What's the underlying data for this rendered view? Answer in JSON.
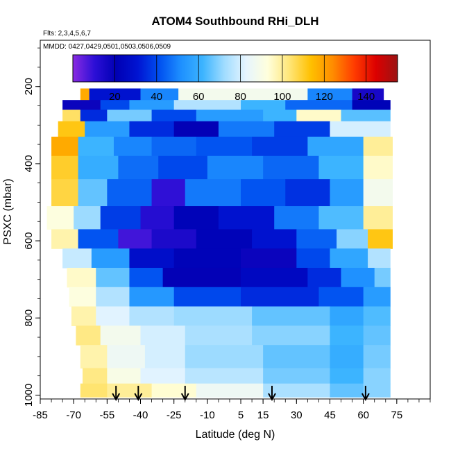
{
  "chart_data": {
    "type": "heatmap",
    "title": "ATOM4 Southbound RHi_DLH",
    "subtitle_flights": "Flts: 2,3,4,5,6,7",
    "subtitle_dates": "MMDD: 0427,0429,0501,0503,0506,0509",
    "xlabel": "Latitude (deg N)",
    "ylabel": "PSXC (mbar)",
    "xlim": [
      -85,
      90
    ],
    "ylim": [
      1010,
      80
    ],
    "x_ticks": [
      -85,
      -70,
      -55,
      -40,
      -25,
      -10,
      5,
      15,
      30,
      45,
      60,
      75
    ],
    "x_tick_labels": [
      "-85",
      "-70",
      "-55",
      "-40",
      "-25",
      "-10",
      "5",
      "15",
      "30",
      "45",
      "60",
      "75"
    ],
    "y_ticks": [
      200,
      400,
      600,
      800,
      1000
    ],
    "y_tick_labels": [
      "200",
      "400",
      "600",
      "800",
      "1000"
    ],
    "colorbar": {
      "range": [
        0,
        155
      ],
      "ticks": [
        20,
        40,
        60,
        80,
        100,
        120,
        140
      ],
      "tick_labels": [
        "20",
        "40",
        "60",
        "80",
        "100",
        "120",
        "140"
      ],
      "colors": [
        "#8a2be2",
        "#2c0fd6",
        "#0000b4",
        "#0014d2",
        "#0050f0",
        "#1e90ff",
        "#3cb4ff",
        "#a0dcff",
        "#e6f5ff",
        "#ffffdc",
        "#ffe678",
        "#ffc000",
        "#ff8c00",
        "#ff3c00",
        "#dc0000",
        "#9b1414"
      ]
    },
    "arrow_latitudes": [
      -51,
      -41,
      -20,
      19,
      61
    ],
    "profile_rows": [
      {
        "p0": 205,
        "p1": 235,
        "segments": [
          [
            -67,
            -63,
            118
          ],
          [
            -63,
            -40,
            30
          ],
          [
            -40,
            -23,
            50
          ],
          [
            -23,
            35,
            88
          ],
          [
            35,
            55,
            50
          ],
          [
            55,
            69,
            15
          ]
        ]
      },
      {
        "p0": 235,
        "p1": 260,
        "segments": [
          [
            -75,
            -58,
            18
          ],
          [
            -58,
            -45,
            40
          ],
          [
            -45,
            -25,
            55
          ],
          [
            -25,
            5,
            75
          ],
          [
            5,
            25,
            62
          ],
          [
            25,
            55,
            45
          ],
          [
            55,
            72,
            22
          ]
        ]
      },
      {
        "p0": 260,
        "p1": 290,
        "segments": [
          [
            -75,
            -67,
            105
          ],
          [
            -67,
            -55,
            35
          ],
          [
            -55,
            -35,
            68
          ],
          [
            -35,
            -15,
            40
          ],
          [
            -15,
            15,
            55
          ],
          [
            15,
            30,
            62
          ],
          [
            30,
            50,
            95
          ],
          [
            50,
            72,
            65
          ]
        ]
      },
      {
        "p0": 290,
        "p1": 330,
        "segments": [
          [
            -77,
            -65,
            112
          ],
          [
            -65,
            -45,
            55
          ],
          [
            -45,
            -25,
            35
          ],
          [
            -25,
            -5,
            20
          ],
          [
            -5,
            20,
            48
          ],
          [
            20,
            45,
            38
          ],
          [
            45,
            72,
            80
          ]
        ]
      },
      {
        "p0": 330,
        "p1": 380,
        "segments": [
          [
            -80,
            -68,
            118
          ],
          [
            -68,
            -52,
            62
          ],
          [
            -52,
            -35,
            50
          ],
          [
            -35,
            -15,
            45
          ],
          [
            -15,
            10,
            42
          ],
          [
            10,
            35,
            38
          ],
          [
            35,
            60,
            58
          ],
          [
            60,
            73,
            100
          ]
        ]
      },
      {
        "p0": 380,
        "p1": 440,
        "segments": [
          [
            -80,
            -68,
            110
          ],
          [
            -68,
            -50,
            60
          ],
          [
            -50,
            -32,
            46
          ],
          [
            -32,
            -10,
            40
          ],
          [
            -10,
            15,
            50
          ],
          [
            15,
            40,
            45
          ],
          [
            40,
            60,
            62
          ],
          [
            60,
            73,
            95
          ]
        ]
      },
      {
        "p0": 440,
        "p1": 510,
        "segments": [
          [
            -80,
            -68,
            108
          ],
          [
            -68,
            -55,
            66
          ],
          [
            -55,
            -35,
            44
          ],
          [
            -35,
            -20,
            10
          ],
          [
            -20,
            5,
            48
          ],
          [
            5,
            25,
            42
          ],
          [
            25,
            45,
            36
          ],
          [
            45,
            60,
            55
          ],
          [
            60,
            73,
            88
          ]
        ]
      },
      {
        "p0": 510,
        "p1": 570,
        "segments": [
          [
            -82,
            -70,
            92
          ],
          [
            -70,
            -58,
            72
          ],
          [
            -58,
            -40,
            38
          ],
          [
            -40,
            -25,
            12
          ],
          [
            -25,
            -5,
            22
          ],
          [
            -5,
            20,
            30
          ],
          [
            20,
            40,
            48
          ],
          [
            40,
            60,
            64
          ],
          [
            60,
            73,
            100
          ]
        ]
      },
      {
        "p0": 570,
        "p1": 620,
        "segments": [
          [
            -80,
            -68,
            98
          ],
          [
            -68,
            -50,
            42
          ],
          [
            -50,
            -35,
            8
          ],
          [
            -35,
            -15,
            14
          ],
          [
            -15,
            10,
            22
          ],
          [
            10,
            30,
            30
          ],
          [
            30,
            48,
            44
          ],
          [
            48,
            62,
            70
          ],
          [
            62,
            73,
            112
          ]
        ]
      },
      {
        "p0": 620,
        "p1": 670,
        "segments": [
          [
            -75,
            -62,
            78
          ],
          [
            -62,
            -45,
            55
          ],
          [
            -45,
            -25,
            28
          ],
          [
            -25,
            5,
            22
          ],
          [
            5,
            30,
            18
          ],
          [
            30,
            45,
            40
          ],
          [
            45,
            62,
            58
          ],
          [
            62,
            72,
            75
          ]
        ]
      },
      {
        "p0": 670,
        "p1": 720,
        "segments": [
          [
            -73,
            -60,
            95
          ],
          [
            -60,
            -45,
            66
          ],
          [
            -45,
            -30,
            42
          ],
          [
            -30,
            5,
            20
          ],
          [
            5,
            35,
            25
          ],
          [
            35,
            50,
            35
          ],
          [
            50,
            65,
            52
          ],
          [
            65,
            72,
            68
          ]
        ]
      },
      {
        "p0": 720,
        "p1": 770,
        "segments": [
          [
            -72,
            -60,
            92
          ],
          [
            -60,
            -45,
            75
          ],
          [
            -45,
            -25,
            54
          ],
          [
            -25,
            5,
            40
          ],
          [
            5,
            40,
            35
          ],
          [
            40,
            60,
            42
          ],
          [
            60,
            72,
            55
          ]
        ]
      },
      {
        "p0": 770,
        "p1": 820,
        "segments": [
          [
            -71,
            -60,
            98
          ],
          [
            -60,
            -45,
            82
          ],
          [
            -45,
            -25,
            75
          ],
          [
            -25,
            10,
            72
          ],
          [
            10,
            45,
            66
          ],
          [
            45,
            60,
            58
          ],
          [
            60,
            72,
            64
          ]
        ]
      },
      {
        "p0": 820,
        "p1": 870,
        "segments": [
          [
            -69,
            -58,
            102
          ],
          [
            -58,
            -40,
            88
          ],
          [
            -40,
            -20,
            80
          ],
          [
            -20,
            10,
            74
          ],
          [
            10,
            45,
            70
          ],
          [
            45,
            60,
            62
          ],
          [
            60,
            72,
            66
          ]
        ]
      },
      {
        "p0": 870,
        "p1": 930,
        "segments": [
          [
            -67,
            -55,
            98
          ],
          [
            -55,
            -38,
            86
          ],
          [
            -38,
            -20,
            80
          ],
          [
            -20,
            15,
            72
          ],
          [
            15,
            45,
            66
          ],
          [
            45,
            60,
            60
          ],
          [
            60,
            72,
            68
          ]
        ]
      },
      {
        "p0": 930,
        "p1": 970,
        "segments": [
          [
            -66,
            -55,
            102
          ],
          [
            -55,
            -40,
            90
          ],
          [
            -40,
            -20,
            82
          ],
          [
            -20,
            15,
            76
          ],
          [
            15,
            45,
            68
          ],
          [
            45,
            60,
            62
          ],
          [
            60,
            72,
            70
          ]
        ]
      },
      {
        "p0": 970,
        "p1": 1005,
        "segments": [
          [
            -67,
            -55,
            104
          ],
          [
            -55,
            -35,
            100
          ],
          [
            -35,
            -15,
            94
          ],
          [
            -15,
            15,
            86
          ],
          [
            15,
            45,
            74
          ],
          [
            45,
            60,
            66
          ],
          [
            60,
            72,
            70
          ]
        ]
      }
    ]
  }
}
